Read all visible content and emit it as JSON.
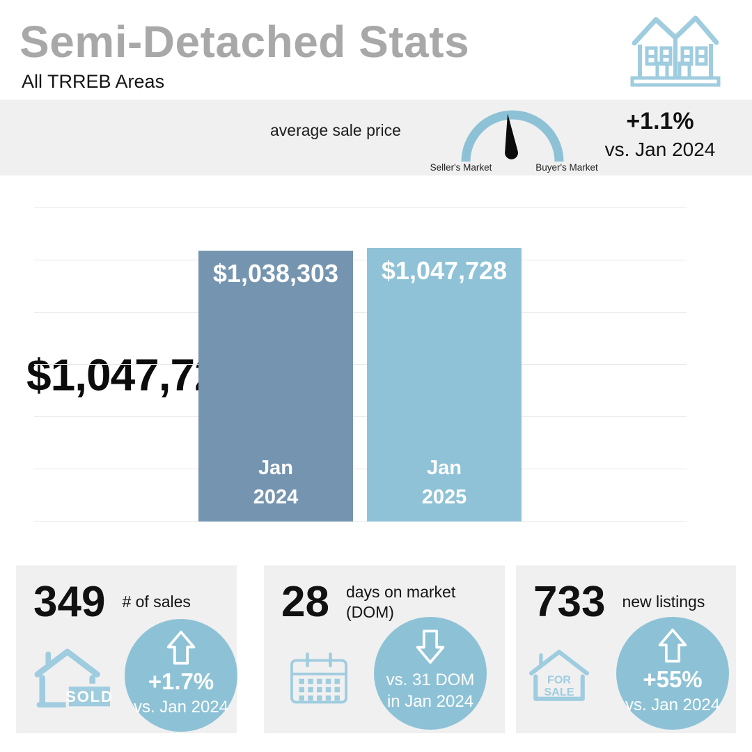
{
  "header": {
    "title": "Semi-Detached Stats",
    "subtitle": "All TRREB Areas",
    "icon": "duplex-houses-icon"
  },
  "banner": {
    "price": "$1,047,728",
    "price_label": "average sale price",
    "gauge": {
      "icon": "market-gauge-icon",
      "left_label": "Seller's Market",
      "right_label": "Buyer's Market",
      "needle": "center"
    },
    "change_value": "+1.1%",
    "change_note": "vs. Jan 2024"
  },
  "chart_data": {
    "type": "bar",
    "categories": [
      "Jan 2024",
      "Jan 2025"
    ],
    "category_label_lines": [
      [
        "Jan",
        "2024"
      ],
      [
        "Jan",
        "2025"
      ]
    ],
    "values": [
      1038303,
      1047728
    ],
    "bar_labels": [
      "$1,038,303",
      "$1,047,728"
    ],
    "title": "",
    "xlabel": "",
    "ylabel": "",
    "ylim": [
      0,
      1200000
    ],
    "gridline_step": 200000,
    "grid": true,
    "legend_position": "none",
    "bar_colors": [
      "#7594b0",
      "#8fc2d7"
    ]
  },
  "cards": [
    {
      "value": "349",
      "label": "# of sales",
      "icon": "house-sold-icon",
      "sign_text": "SOLD",
      "arrow": "up",
      "change_value": "+1.7%",
      "note_line1": "vs. Jan 2024",
      "note_line2": ""
    },
    {
      "value": "28",
      "label": "days on market (DOM)",
      "icon": "calendar-icon",
      "arrow": "down",
      "change_value": "",
      "note_line1": "vs. 31 DOM",
      "note_line2": "in Jan 2024"
    },
    {
      "value": "733",
      "label": "new listings",
      "icon": "house-for-sale-icon",
      "sign_line1": "FOR",
      "sign_line2": "SALE",
      "arrow": "up",
      "change_value": "+55%",
      "note_line1": "vs. Jan 2024",
      "note_line2": ""
    }
  ],
  "colors": {
    "title_gray": "#a8a8a8",
    "panel_gray": "#f0f0f1",
    "circle_blue": "#8dc2d6",
    "accent_light_blue": "#9fccdf",
    "bar_2024": "#7594b0",
    "bar_2025": "#8fc2d7",
    "text_black": "#111111"
  }
}
